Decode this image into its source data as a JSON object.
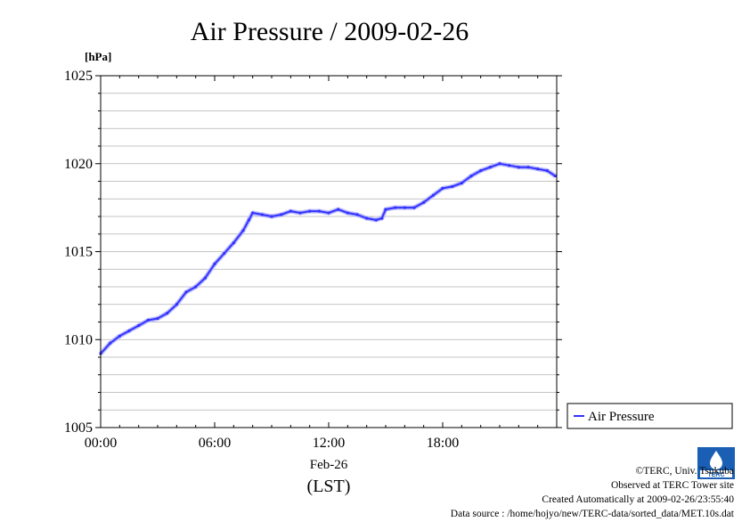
{
  "chart_data": {
    "type": "line",
    "title": "Air Pressure / 2009-02-26",
    "ylabel": "[hPa]",
    "xlabel": "(LST)",
    "x_date_label": "Feb-26",
    "ylim": [
      1005,
      1025
    ],
    "y_ticks": [
      1005,
      1010,
      1015,
      1020,
      1025
    ],
    "x_range_hours": [
      0,
      24
    ],
    "x_ticks": [
      {
        "hour": 0,
        "label": "00:00"
      },
      {
        "hour": 6,
        "label": "06:00"
      },
      {
        "hour": 12,
        "label": "12:00"
      },
      {
        "hour": 18,
        "label": "18:00"
      }
    ],
    "grid": true,
    "legend_position": "right",
    "series": [
      {
        "name": "Air Pressure",
        "color": "#3333ff",
        "x": [
          0.0,
          0.5,
          1.0,
          1.5,
          2.0,
          2.5,
          3.0,
          3.5,
          4.0,
          4.5,
          5.0,
          5.5,
          6.0,
          6.5,
          7.0,
          7.5,
          7.8,
          8.0,
          8.5,
          9.0,
          9.5,
          10.0,
          10.5,
          11.0,
          11.5,
          12.0,
          12.5,
          13.0,
          13.5,
          14.0,
          14.5,
          14.8,
          15.0,
          15.5,
          16.0,
          16.5,
          17.0,
          17.5,
          18.0,
          18.5,
          19.0,
          19.5,
          20.0,
          20.5,
          21.0,
          21.5,
          22.0,
          22.5,
          23.0,
          23.5,
          23.92
        ],
        "y": [
          1009.2,
          1009.8,
          1010.2,
          1010.5,
          1010.8,
          1011.1,
          1011.2,
          1011.5,
          1012.0,
          1012.7,
          1013.0,
          1013.5,
          1014.3,
          1014.9,
          1015.5,
          1016.2,
          1016.8,
          1017.2,
          1017.1,
          1017.0,
          1017.1,
          1017.3,
          1017.2,
          1017.3,
          1017.3,
          1017.2,
          1017.4,
          1017.2,
          1017.1,
          1016.9,
          1016.8,
          1016.9,
          1017.4,
          1017.5,
          1017.5,
          1017.5,
          1017.8,
          1018.2,
          1018.6,
          1018.7,
          1018.9,
          1019.3,
          1019.6,
          1019.8,
          1020.0,
          1019.9,
          1019.8,
          1019.8,
          1019.7,
          1019.6,
          1019.3
        ]
      }
    ]
  },
  "footer": {
    "copyright": "©TERC, Univ. Tsukuba",
    "observed": "Observed at TERC Tower site",
    "created": "Created Automatically at 2009-02-26/23:55:40",
    "source": "Data source : /home/hojyo/new/TERC-data/sorted_data/MET.10s.dat"
  },
  "logo_text": "TERC"
}
